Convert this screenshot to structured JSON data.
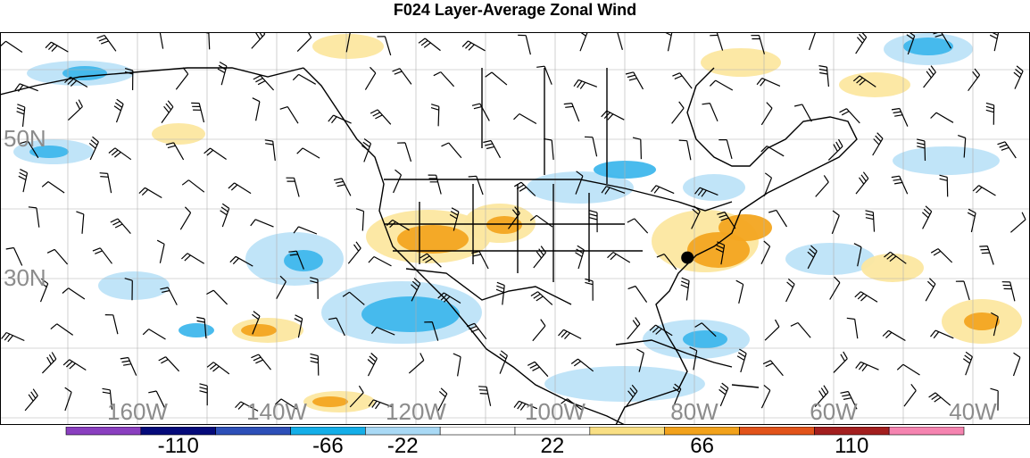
{
  "title": "F024 Layer-Average Zonal Wind",
  "lat_labels": [
    {
      "text": "50N",
      "lat": 50
    },
    {
      "text": "30N",
      "lat": 30
    }
  ],
  "lon_labels": [
    {
      "text": "160W",
      "lon": -160
    },
    {
      "text": "140W",
      "lon": -140
    },
    {
      "text": "120W",
      "lon": -120
    },
    {
      "text": "100W",
      "lon": -100
    },
    {
      "text": "80W",
      "lon": -80
    },
    {
      "text": "60W",
      "lon": -60
    },
    {
      "text": "40W",
      "lon": -40
    }
  ],
  "colorbar": {
    "labels": [
      "-110",
      "-66",
      "-22",
      "22",
      "66",
      "110"
    ],
    "colors": [
      "#8a3fbf",
      "#050a7a",
      "#2d4fb8",
      "#14aee8",
      "#a9d9f5",
      "#ffffff",
      "#ffffff",
      "#f9df84",
      "#f2a21b",
      "#e2531a",
      "#a31e1e",
      "#f584b0"
    ]
  },
  "shading": {
    "negative_light": "#bde3f8",
    "negative_mid": "#3fb7ec",
    "positive_light": "#fce7a0",
    "positive_mid": "#f3a520"
  },
  "station_marker": {
    "lon": -81,
    "lat": 33
  }
}
